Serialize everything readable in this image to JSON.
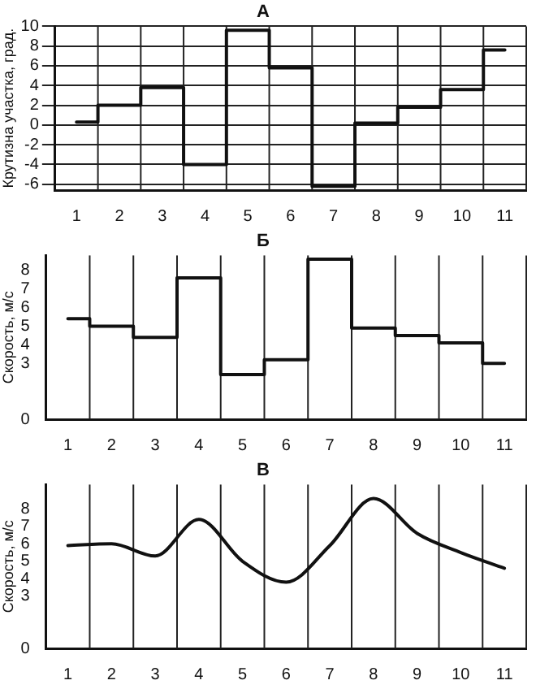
{
  "chart_data": [
    {
      "type": "step",
      "title": "А",
      "ylabel": "Крутизна участка, град.",
      "categories": [
        "1",
        "2",
        "3",
        "4",
        "5",
        "6",
        "7",
        "8",
        "9",
        "10",
        "11"
      ],
      "ylim": [
        -6.6,
        10
      ],
      "yticks": [
        -6,
        -4,
        -2,
        0,
        2,
        4,
        6,
        8,
        10
      ],
      "grid": true,
      "series": [
        {
          "color": "#111111",
          "values": [
            0.3,
            2,
            3.8,
            -4,
            9.6,
            5.8,
            -6.2,
            0.2,
            1.8,
            3.6,
            7.6
          ]
        }
      ]
    },
    {
      "type": "step",
      "title": "Б",
      "ylabel": "Скорость, м/с",
      "categories": [
        "1",
        "2",
        "3",
        "4",
        "5",
        "6",
        "7",
        "8",
        "9",
        "10",
        "11"
      ],
      "ylim": [
        0,
        8.8
      ],
      "yticks": [
        0,
        3,
        4,
        5,
        6,
        7,
        8
      ],
      "grid": "x",
      "series": [
        {
          "color": "#111111",
          "values": [
            5.4,
            5,
            4.4,
            7.6,
            2.4,
            3.2,
            8.6,
            4.9,
            4.5,
            4.1,
            3
          ]
        }
      ]
    },
    {
      "type": "line",
      "title": "В",
      "ylabel": "Скорость, м/с",
      "categories": [
        "1",
        "2",
        "3",
        "4",
        "5",
        "6",
        "7",
        "8",
        "9",
        "10",
        "11"
      ],
      "ylim": [
        0,
        9.4
      ],
      "yticks": [
        0,
        3,
        4,
        5,
        6,
        7,
        8
      ],
      "grid": "x",
      "marker": "none",
      "series": [
        {
          "color": "#111111",
          "values": [
            5.9,
            6,
            5.3,
            7.4,
            5,
            3.8,
            5.9,
            8.6,
            6.6,
            5.5,
            4.6
          ]
        }
      ]
    }
  ]
}
